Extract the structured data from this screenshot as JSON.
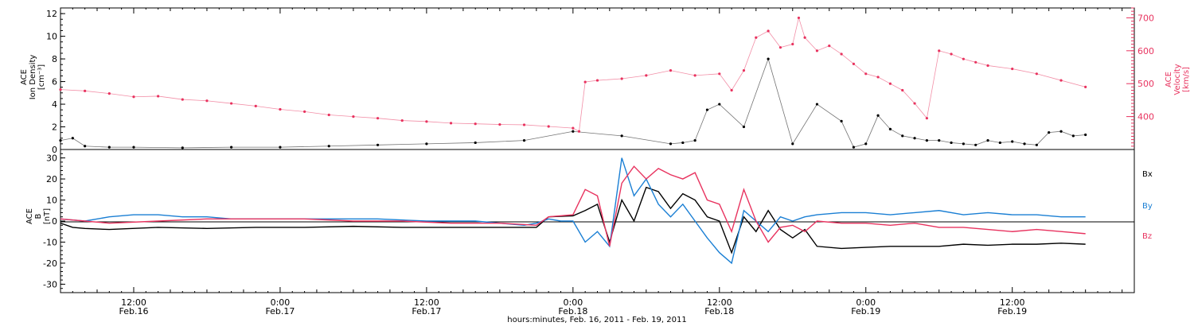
{
  "colors": {
    "black": "#000000",
    "red": "#e8335f",
    "blue": "#1a7fd4"
  },
  "chart_data": [
    {
      "type": "scatter",
      "panel": "top",
      "ylabel_left": [
        "ACE",
        "Ion Density",
        "[cm⁻³]"
      ],
      "ylabel_right": [
        "ACE",
        "Velocity",
        "[km/s]"
      ],
      "ylim": [
        0,
        12.5
      ],
      "y2lim": [
        300,
        730
      ],
      "yticks": [
        "0",
        "2",
        "4",
        "6",
        "8",
        "10",
        "12"
      ],
      "y2ticks": [
        "400",
        "500",
        "600",
        "700"
      ],
      "xlim": [
        6,
        94
      ],
      "series": [
        {
          "key": "density",
          "axis": "left",
          "color": "black",
          "x": [
            6,
            7,
            8,
            10,
            12,
            16,
            20,
            24,
            28,
            32,
            36,
            40,
            44,
            48,
            52,
            56,
            57,
            58,
            59,
            60,
            62,
            64,
            66,
            68,
            70,
            71,
            72,
            73,
            74,
            75,
            76,
            77,
            78,
            79,
            80,
            81,
            82,
            83,
            84,
            85,
            86,
            87,
            88,
            89,
            90
          ],
          "y": [
            0.8,
            1.0,
            0.3,
            0.2,
            0.2,
            0.15,
            0.2,
            0.2,
            0.3,
            0.4,
            0.5,
            0.6,
            0.8,
            1.6,
            1.2,
            0.5,
            0.6,
            0.8,
            3.5,
            4.0,
            2.0,
            8.0,
            0.5,
            4.0,
            2.5,
            0.2,
            0.5,
            3.0,
            1.8,
            1.2,
            1.0,
            0.8,
            0.8,
            0.6,
            0.5,
            0.4,
            0.8,
            0.6,
            0.7,
            0.5,
            0.4,
            1.5,
            1.6,
            1.2,
            1.3
          ]
        },
        {
          "key": "velocity",
          "axis": "right",
          "color": "red",
          "x": [
            6,
            8,
            10,
            12,
            14,
            16,
            18,
            20,
            22,
            24,
            26,
            28,
            30,
            32,
            34,
            36,
            38,
            40,
            42,
            44,
            46,
            48,
            48.5,
            49,
            50,
            52,
            54,
            56,
            58,
            60,
            61,
            62,
            63,
            64,
            65,
            66,
            66.5,
            67,
            68,
            69,
            70,
            71,
            72,
            73,
            74,
            75,
            76,
            77,
            78,
            79,
            80,
            81,
            82,
            84,
            86,
            88,
            90
          ],
          "y": [
            482,
            478,
            470,
            460,
            462,
            452,
            448,
            440,
            432,
            422,
            415,
            405,
            400,
            395,
            388,
            385,
            380,
            378,
            376,
            375,
            370,
            365,
            355,
            505,
            510,
            515,
            525,
            540,
            525,
            530,
            480,
            540,
            640,
            660,
            610,
            620,
            700,
            640,
            600,
            615,
            590,
            560,
            530,
            520,
            500,
            480,
            440,
            395,
            600,
            590,
            575,
            565,
            555,
            545,
            530,
            510,
            490
          ]
        }
      ]
    },
    {
      "type": "line",
      "panel": "bottom",
      "ylabel_left": [
        "ACE",
        "B",
        "[nT]"
      ],
      "ylim": [
        -34,
        34
      ],
      "yticks": [
        "-30",
        "-20",
        "-10",
        "0",
        "10",
        "20",
        "30"
      ],
      "xlim": [
        6,
        94
      ],
      "xticks": [
        {
          "x": 12,
          "top": "12:00",
          "bottom": "Feb.16"
        },
        {
          "x": 24,
          "top": "0:00",
          "bottom": "Feb.17"
        },
        {
          "x": 36,
          "top": "12:00",
          "bottom": "Feb.17"
        },
        {
          "x": 48,
          "top": "0:00",
          "bottom": "Feb.18"
        },
        {
          "x": 60,
          "top": "12:00",
          "bottom": "Feb.18"
        },
        {
          "x": 72,
          "top": "0:00",
          "bottom": "Feb.19"
        },
        {
          "x": 84,
          "top": "12:00",
          "bottom": "Feb.19"
        }
      ],
      "xlabel": "hours:minutes, Feb. 16, 2011 - Feb. 19, 2011",
      "series": [
        {
          "key": "bx",
          "name": "Bx",
          "color": "black",
          "x": [
            6,
            7,
            8,
            10,
            14,
            18,
            22,
            26,
            30,
            34,
            38,
            42,
            45,
            46,
            48,
            49,
            50,
            51,
            52,
            53,
            54,
            55,
            56,
            57,
            58,
            59,
            60,
            61,
            62,
            63,
            64,
            65,
            66,
            67,
            68,
            70,
            72,
            74,
            76,
            78,
            80,
            82,
            84,
            86,
            88,
            90
          ],
          "y": [
            -1,
            -3,
            -3.5,
            -4,
            -3,
            -3.5,
            -3,
            -3,
            -2.5,
            -3,
            -3,
            -3,
            -3,
            2,
            2.5,
            5,
            8,
            -10,
            10,
            0,
            16,
            14,
            6,
            13,
            10,
            2,
            0,
            -15,
            2,
            -5,
            5,
            -4,
            -8,
            -4,
            -12,
            -13,
            -12.5,
            -12,
            -12,
            -12,
            -11,
            -11.5,
            -11,
            -11,
            -10.5,
            -11
          ]
        },
        {
          "key": "by",
          "name": "By",
          "color": "blue",
          "x": [
            6,
            8,
            10,
            12,
            14,
            16,
            18,
            20,
            22,
            24,
            28,
            32,
            36,
            40,
            44,
            45,
            46,
            47,
            48,
            49,
            50,
            51,
            52,
            53,
            54,
            55,
            56,
            57,
            58,
            59,
            60,
            61,
            62,
            63,
            64,
            65,
            66,
            67,
            68,
            70,
            72,
            74,
            76,
            78,
            80,
            82,
            84,
            86,
            88,
            90
          ],
          "y": [
            1,
            0,
            2,
            3,
            3,
            2,
            2,
            1,
            1,
            1,
            1,
            1,
            0,
            0,
            -2,
            -1,
            1,
            0,
            0,
            -10,
            -5,
            -12,
            30,
            12,
            20,
            8,
            2,
            8,
            0,
            -8,
            -15,
            -20,
            5,
            0,
            -5,
            2,
            0,
            2,
            3,
            4,
            4,
            3,
            4,
            5,
            3,
            4,
            3,
            3,
            2,
            2
          ]
        },
        {
          "key": "bz",
          "name": "Bz",
          "color": "red",
          "x": [
            6,
            8,
            10,
            14,
            18,
            22,
            26,
            30,
            34,
            38,
            42,
            45,
            46,
            48,
            49,
            50,
            51,
            52,
            53,
            54,
            55,
            56,
            57,
            58,
            59,
            60,
            61,
            62,
            63,
            64,
            65,
            66,
            67,
            68,
            70,
            72,
            74,
            76,
            78,
            80,
            82,
            84,
            86,
            88,
            90
          ],
          "y": [
            1,
            0,
            -1,
            0,
            1,
            1,
            1,
            0,
            0,
            -1,
            -1,
            -2,
            2,
            3,
            15,
            12,
            -12,
            18,
            26,
            20,
            25,
            22,
            20,
            23,
            10,
            8,
            -5,
            15,
            0,
            -10,
            -3,
            -2,
            -5,
            0,
            -1,
            -1,
            -2,
            -1,
            -3,
            -3,
            -4,
            -5,
            -4,
            -5,
            -6
          ]
        }
      ]
    }
  ]
}
